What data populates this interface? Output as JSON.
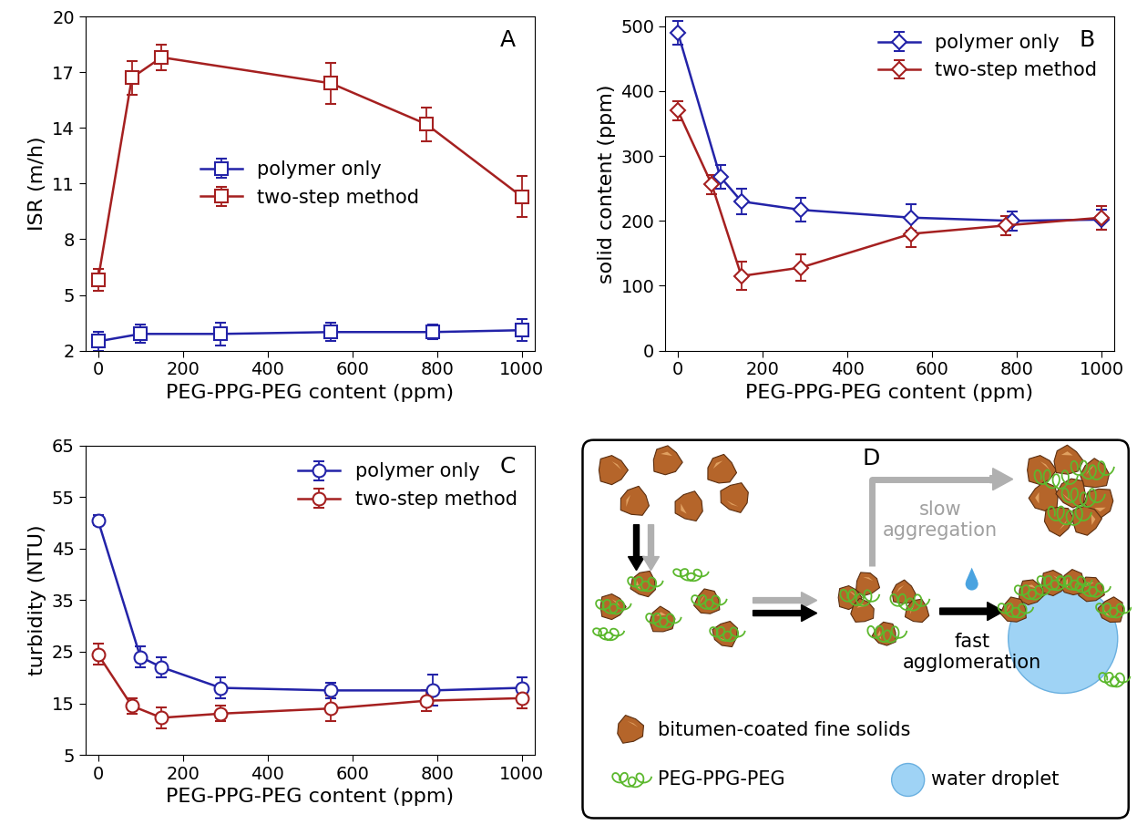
{
  "chart_data": [
    {
      "type": "line",
      "title": "A",
      "x_label": "PEG-PPG-PEG content (ppm)",
      "y_label": "ISR (m/h)",
      "xlim": [
        -30,
        1030
      ],
      "xticks": [
        0,
        200,
        400,
        600,
        800,
        1000
      ],
      "ylim": [
        2,
        20
      ],
      "yticks": [
        2,
        5,
        8,
        11,
        14,
        17,
        20
      ],
      "legend": "center",
      "series": [
        {
          "name": "polymer only",
          "color": "#2323a8",
          "marker": "square",
          "x": [
            0,
            100,
            290,
            550,
            790,
            1000
          ],
          "values": [
            2.5,
            2.9,
            2.9,
            3.0,
            3.0,
            3.1
          ],
          "errors": [
            0.5,
            0.5,
            0.6,
            0.5,
            0.4,
            0.6
          ]
        },
        {
          "name": "two-step method",
          "color": "#a52020",
          "marker": "square",
          "x": [
            0,
            80,
            150,
            550,
            775,
            1000
          ],
          "values": [
            5.8,
            16.7,
            17.8,
            16.4,
            14.2,
            10.3
          ],
          "errors": [
            0.6,
            0.9,
            0.7,
            1.1,
            0.9,
            1.1
          ]
        }
      ]
    },
    {
      "type": "line",
      "title": "B",
      "x_label": "PEG-PPG-PEG content (ppm)",
      "y_label": "solid content (ppm)",
      "xlim": [
        -30,
        1030
      ],
      "xticks": [
        0,
        200,
        400,
        600,
        800,
        1000
      ],
      "ylim": [
        0,
        515
      ],
      "yticks": [
        0,
        100,
        200,
        300,
        400,
        500
      ],
      "legend": "upper right",
      "series": [
        {
          "name": "polymer only",
          "color": "#2323a8",
          "marker": "diamond",
          "x": [
            0,
            100,
            150,
            290,
            550,
            790,
            1000
          ],
          "values": [
            490,
            268,
            230,
            217,
            205,
            200,
            202
          ],
          "errors": [
            18,
            18,
            20,
            18,
            20,
            15,
            15
          ]
        },
        {
          "name": "two-step method",
          "color": "#a52020",
          "marker": "diamond",
          "x": [
            0,
            80,
            150,
            290,
            550,
            775,
            1000
          ],
          "values": [
            370,
            256,
            115,
            128,
            180,
            193,
            205
          ],
          "errors": [
            15,
            15,
            22,
            20,
            20,
            15,
            18
          ]
        }
      ]
    },
    {
      "type": "line",
      "title": "C",
      "x_label": "PEG-PPG-PEG content (ppm)",
      "y_label": "turbidity (NTU)",
      "xlim": [
        -30,
        1030
      ],
      "xticks": [
        0,
        200,
        400,
        600,
        800,
        1000
      ],
      "ylim": [
        5,
        65
      ],
      "yticks": [
        5,
        15,
        25,
        35,
        45,
        55,
        65
      ],
      "legend": "upper right",
      "series": [
        {
          "name": "polymer only",
          "color": "#2323a8",
          "marker": "circle",
          "x": [
            0,
            100,
            150,
            290,
            550,
            790,
            1000
          ],
          "values": [
            50.5,
            24,
            22,
            18,
            17.5,
            17.5,
            18
          ],
          "errors": [
            1,
            2,
            2,
            2,
            1.5,
            3,
            2
          ]
        },
        {
          "name": "two-step method",
          "color": "#a52020",
          "marker": "circle",
          "x": [
            0,
            80,
            150,
            290,
            550,
            775,
            1000
          ],
          "values": [
            24.5,
            14.5,
            12.2,
            13,
            14,
            15.5,
            16
          ],
          "errors": [
            2,
            1.5,
            2,
            1.5,
            2.5,
            2,
            2
          ]
        }
      ]
    }
  ],
  "diagram": {
    "label": "D",
    "slow_arrow": "slow\naggregation",
    "fast_arrow": "fast\nagglomeration",
    "legend": {
      "particle": "bitumen-coated fine solids",
      "polymer": "PEG-PPG-PEG",
      "droplet": "water droplet"
    }
  }
}
